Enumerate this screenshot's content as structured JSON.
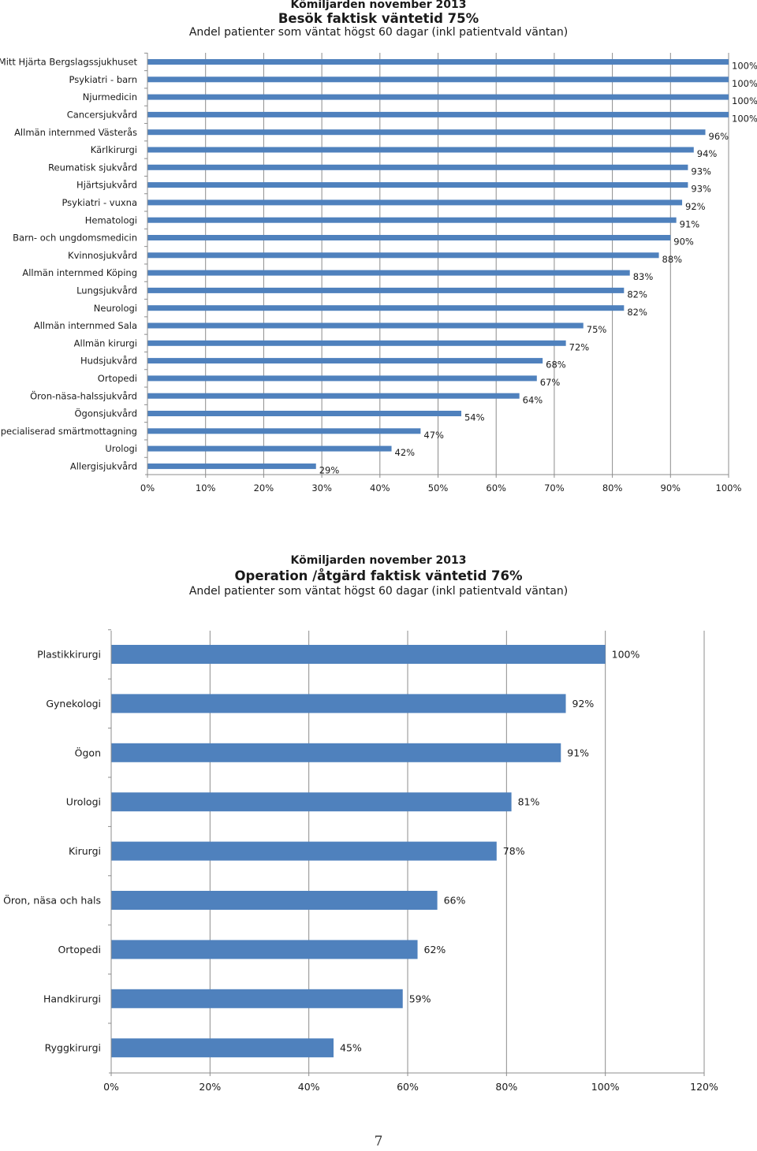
{
  "chart_data": [
    {
      "type": "bar",
      "orientation": "horizontal",
      "title": "Kömiljarden november 2013",
      "subtitle": "Besök faktisk väntetid 75%",
      "caption": "Andel patienter som väntat högst 60 dagar (inkl patientvald väntan)",
      "xlabel": "",
      "ylabel": "",
      "xlim": [
        0,
        100
      ],
      "x_ticks": [
        "0%",
        "10%",
        "20%",
        "30%",
        "40%",
        "50%",
        "60%",
        "70%",
        "80%",
        "90%",
        "100%"
      ],
      "grid": "vertical",
      "bar_color": "#4f81bd",
      "categories": [
        "Mitt Hjärta Bergslagssjukhuset",
        "Psykiatri - barn",
        "Njurmedicin",
        "Cancersjukvård",
        "Allmän internmed Västerås",
        "Kärlkirurgi",
        "Reumatisk sjukvård",
        "Hjärtsjukvård",
        "Psykiatri - vuxna",
        "Hematologi",
        "Barn- och ungdomsmedicin",
        "Kvinnosjukvård",
        "Allmän internmed Köping",
        "Lungsjukvård",
        "Neurologi",
        "Allmän internmed Sala",
        "Allmän kirurgi",
        "Hudsjukvård",
        "Ortopedi",
        "Öron-näsa-halssjukvård",
        "Ögonsjukvård",
        "Specialiserad smärtmottagning",
        "Urologi",
        "Allergisjukvård"
      ],
      "values": [
        100,
        100,
        100,
        100,
        96,
        94,
        93,
        93,
        92,
        91,
        90,
        88,
        83,
        82,
        82,
        75,
        72,
        68,
        67,
        64,
        54,
        47,
        42,
        29
      ],
      "labels": [
        "100%",
        "100%",
        "100%",
        "100%",
        "96%",
        "94%",
        "93%",
        "93%",
        "92%",
        "91%",
        "90%",
        "88%",
        "83%",
        "82%",
        "82%",
        "75%",
        "72%",
        "68%",
        "67%",
        "64%",
        "54%",
        "47%",
        "42%",
        "29%"
      ]
    },
    {
      "type": "bar",
      "orientation": "horizontal",
      "title": "Kömiljarden november 2013",
      "subtitle": "Operation /åtgärd faktisk väntetid 76%",
      "caption": "Andel patienter som väntat högst 60 dagar (inkl patientvald väntan)",
      "xlabel": "",
      "ylabel": "",
      "xlim": [
        0,
        120
      ],
      "x_ticks": [
        "0%",
        "20%",
        "40%",
        "60%",
        "80%",
        "100%",
        "120%"
      ],
      "grid": "vertical",
      "bar_color": "#4f81bd",
      "categories": [
        "Plastikkirurgi",
        "Gynekologi",
        "Ögon",
        "Urologi",
        "Kirurgi",
        "Öron, näsa och hals",
        "Ortopedi",
        "Handkirurgi",
        "Ryggkirurgi"
      ],
      "values": [
        100,
        92,
        91,
        81,
        78,
        66,
        62,
        59,
        45
      ],
      "labels": [
        "100%",
        "92%",
        "91%",
        "81%",
        "78%",
        "66%",
        "62%",
        "59%",
        "45%"
      ]
    }
  ],
  "page": {
    "number": "7"
  }
}
